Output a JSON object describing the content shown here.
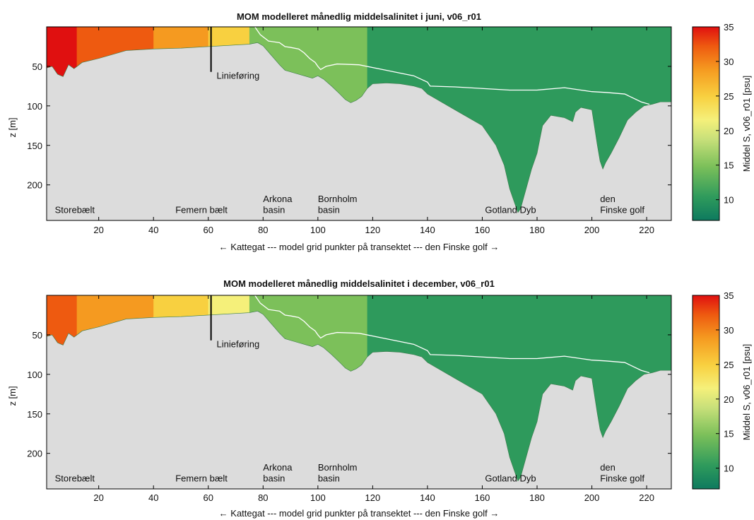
{
  "chart_data": [
    {
      "type": "heatmap",
      "title": "MOM modelleret månedlig middelsalinitet i juni, v06_r01",
      "xlabel": "← Kattegat --- model grid punkter på transektet --- den Finske golf →",
      "ylabel": "z [m]",
      "xlim": [
        1,
        229
      ],
      "ylim": [
        0,
        245
      ],
      "y_reversed": true,
      "xticks": [
        20,
        40,
        60,
        80,
        100,
        120,
        140,
        160,
        180,
        200,
        220
      ],
      "yticks": [
        50,
        100,
        150,
        200
      ],
      "colorbar": {
        "label": "Middel S, v06_r01 [psu]",
        "range": [
          7,
          35
        ],
        "ticks": [
          10,
          15,
          20,
          25,
          30,
          35
        ]
      },
      "annotations": [
        {
          "text": "Storebælt",
          "x": 4,
          "y": 232
        },
        {
          "text": "Femern bælt",
          "x": 48,
          "y": 232
        },
        {
          "text": "Arkona",
          "x": 80,
          "y": 218
        },
        {
          "text": "basin",
          "x": 80,
          "y": 232
        },
        {
          "text": "Bornholm",
          "x": 100,
          "y": 218
        },
        {
          "text": "basin",
          "x": 100,
          "y": 232
        },
        {
          "text": "Gotland Dyb",
          "x": 161,
          "y": 232
        },
        {
          "text": "den",
          "x": 203,
          "y": 218
        },
        {
          "text": "Finske golf",
          "x": 203,
          "y": 232
        },
        {
          "text": "Linieføring",
          "x": 62,
          "y": 62
        }
      ],
      "marker_line": {
        "x": 61,
        "y": [
          0,
          57
        ]
      },
      "bathymetry": [
        [
          1,
          52
        ],
        [
          3,
          50
        ],
        [
          5,
          60
        ],
        [
          7,
          63
        ],
        [
          9,
          48
        ],
        [
          11,
          53
        ],
        [
          14,
          45
        ],
        [
          20,
          40
        ],
        [
          30,
          30
        ],
        [
          40,
          28
        ],
        [
          50,
          27
        ],
        [
          60,
          25
        ],
        [
          70,
          23
        ],
        [
          75,
          22
        ],
        [
          78,
          20
        ],
        [
          80,
          24
        ],
        [
          82,
          32
        ],
        [
          84,
          40
        ],
        [
          86,
          48
        ],
        [
          88,
          55
        ],
        [
          90,
          57
        ],
        [
          93,
          60
        ],
        [
          96,
          63
        ],
        [
          98,
          65
        ],
        [
          100,
          62
        ],
        [
          102,
          66
        ],
        [
          105,
          75
        ],
        [
          108,
          85
        ],
        [
          110,
          92
        ],
        [
          112,
          96
        ],
        [
          114,
          93
        ],
        [
          116,
          88
        ],
        [
          118,
          78
        ],
        [
          120,
          72
        ],
        [
          125,
          71
        ],
        [
          130,
          72
        ],
        [
          135,
          75
        ],
        [
          138,
          78
        ],
        [
          140,
          85
        ],
        [
          145,
          95
        ],
        [
          150,
          105
        ],
        [
          155,
          115
        ],
        [
          160,
          125
        ],
        [
          165,
          150
        ],
        [
          168,
          175
        ],
        [
          170,
          205
        ],
        [
          172,
          225
        ],
        [
          173,
          235
        ],
        [
          174,
          230
        ],
        [
          176,
          205
        ],
        [
          178,
          180
        ],
        [
          180,
          160
        ],
        [
          182,
          125
        ],
        [
          185,
          112
        ],
        [
          190,
          115
        ],
        [
          193,
          120
        ],
        [
          194,
          108
        ],
        [
          196,
          102
        ],
        [
          200,
          105
        ],
        [
          202,
          150
        ],
        [
          203,
          170
        ],
        [
          204,
          180
        ],
        [
          205,
          172
        ],
        [
          207,
          160
        ],
        [
          210,
          140
        ],
        [
          213,
          118
        ],
        [
          216,
          108
        ],
        [
          219,
          100
        ],
        [
          222,
          98
        ],
        [
          225,
          95
        ],
        [
          229,
          95
        ]
      ],
      "halocline": [
        [
          77,
          0
        ],
        [
          79,
          10
        ],
        [
          82,
          18
        ],
        [
          86,
          20
        ],
        [
          88,
          25
        ],
        [
          90,
          26
        ],
        [
          93,
          28
        ],
        [
          95,
          33
        ],
        [
          97,
          40
        ],
        [
          99,
          45
        ],
        [
          100,
          50
        ],
        [
          101,
          54
        ],
        [
          103,
          50
        ],
        [
          107,
          47
        ],
        [
          115,
          48
        ],
        [
          125,
          55
        ],
        [
          135,
          62
        ],
        [
          140,
          70
        ],
        [
          141,
          75
        ],
        [
          150,
          76
        ],
        [
          160,
          78
        ],
        [
          170,
          80
        ],
        [
          180,
          80
        ],
        [
          190,
          77
        ],
        [
          196,
          80
        ],
        [
          200,
          82
        ],
        [
          205,
          83
        ],
        [
          212,
          85
        ],
        [
          218,
          95
        ],
        [
          221,
          98
        ]
      ],
      "salinity_zones": [
        {
          "range": [
            1,
            12
          ],
          "value": 33
        },
        {
          "range": [
            12,
            40
          ],
          "value": 31
        },
        {
          "range": [
            40,
            60
          ],
          "value": 27
        },
        {
          "range": [
            60,
            75
          ],
          "value": 22
        },
        {
          "range": [
            75,
            100
          ],
          "value": 14
        },
        {
          "range": [
            100,
            118
          ],
          "value": 15
        },
        {
          "range": [
            118,
            229
          ],
          "value": 9
        }
      ]
    },
    {
      "type": "heatmap",
      "title": "MOM modelleret månedlig middelsalinitet i december, v06_r01",
      "xlabel": "← Kattegat --- model grid punkter på transektet --- den Finske golf →",
      "ylabel": "z [m]",
      "xlim": [
        1,
        229
      ],
      "ylim": [
        0,
        245
      ],
      "y_reversed": true,
      "xticks": [
        20,
        40,
        60,
        80,
        100,
        120,
        140,
        160,
        180,
        200,
        220
      ],
      "yticks": [
        50,
        100,
        150,
        200
      ],
      "colorbar": {
        "label": "Middel S, v06_r01 [psu]",
        "range": [
          7,
          35
        ],
        "ticks": [
          10,
          15,
          20,
          25,
          30,
          35
        ]
      },
      "annotations": [
        {
          "text": "Storebælt",
          "x": 4,
          "y": 232
        },
        {
          "text": "Femern bælt",
          "x": 48,
          "y": 232
        },
        {
          "text": "Arkona",
          "x": 80,
          "y": 218
        },
        {
          "text": "basin",
          "x": 80,
          "y": 232
        },
        {
          "text": "Bornholm",
          "x": 100,
          "y": 218
        },
        {
          "text": "basin",
          "x": 100,
          "y": 232
        },
        {
          "text": "Gotland Dyb",
          "x": 161,
          "y": 232
        },
        {
          "text": "den",
          "x": 203,
          "y": 218
        },
        {
          "text": "Finske golf",
          "x": 203,
          "y": 232
        },
        {
          "text": "Linieføring",
          "x": 62,
          "y": 62
        }
      ],
      "marker_line": {
        "x": 61,
        "y": [
          0,
          57
        ]
      },
      "bathymetry": [
        [
          1,
          52
        ],
        [
          3,
          50
        ],
        [
          5,
          60
        ],
        [
          7,
          63
        ],
        [
          9,
          48
        ],
        [
          11,
          53
        ],
        [
          14,
          45
        ],
        [
          20,
          40
        ],
        [
          30,
          30
        ],
        [
          40,
          28
        ],
        [
          50,
          27
        ],
        [
          60,
          25
        ],
        [
          70,
          23
        ],
        [
          75,
          22
        ],
        [
          78,
          20
        ],
        [
          80,
          24
        ],
        [
          82,
          32
        ],
        [
          84,
          40
        ],
        [
          86,
          48
        ],
        [
          88,
          55
        ],
        [
          90,
          57
        ],
        [
          93,
          60
        ],
        [
          96,
          63
        ],
        [
          98,
          65
        ],
        [
          100,
          62
        ],
        [
          102,
          66
        ],
        [
          105,
          75
        ],
        [
          108,
          85
        ],
        [
          110,
          92
        ],
        [
          112,
          96
        ],
        [
          114,
          93
        ],
        [
          116,
          88
        ],
        [
          118,
          78
        ],
        [
          120,
          72
        ],
        [
          125,
          71
        ],
        [
          130,
          72
        ],
        [
          135,
          75
        ],
        [
          138,
          78
        ],
        [
          140,
          85
        ],
        [
          145,
          95
        ],
        [
          150,
          105
        ],
        [
          155,
          115
        ],
        [
          160,
          125
        ],
        [
          165,
          150
        ],
        [
          168,
          175
        ],
        [
          170,
          205
        ],
        [
          172,
          225
        ],
        [
          173,
          235
        ],
        [
          174,
          230
        ],
        [
          176,
          205
        ],
        [
          178,
          180
        ],
        [
          180,
          160
        ],
        [
          182,
          125
        ],
        [
          185,
          112
        ],
        [
          190,
          115
        ],
        [
          193,
          120
        ],
        [
          194,
          108
        ],
        [
          196,
          102
        ],
        [
          200,
          105
        ],
        [
          202,
          150
        ],
        [
          203,
          170
        ],
        [
          204,
          180
        ],
        [
          205,
          172
        ],
        [
          207,
          160
        ],
        [
          210,
          140
        ],
        [
          213,
          118
        ],
        [
          216,
          108
        ],
        [
          219,
          100
        ],
        [
          222,
          98
        ],
        [
          225,
          95
        ],
        [
          229,
          95
        ]
      ],
      "halocline": [
        [
          77,
          0
        ],
        [
          79,
          10
        ],
        [
          82,
          18
        ],
        [
          86,
          20
        ],
        [
          88,
          25
        ],
        [
          90,
          26
        ],
        [
          93,
          28
        ],
        [
          95,
          33
        ],
        [
          97,
          40
        ],
        [
          99,
          45
        ],
        [
          100,
          50
        ],
        [
          101,
          54
        ],
        [
          103,
          50
        ],
        [
          107,
          47
        ],
        [
          115,
          48
        ],
        [
          125,
          55
        ],
        [
          135,
          62
        ],
        [
          140,
          70
        ],
        [
          141,
          75
        ],
        [
          150,
          76
        ],
        [
          160,
          78
        ],
        [
          170,
          80
        ],
        [
          180,
          80
        ],
        [
          190,
          77
        ],
        [
          196,
          80
        ],
        [
          200,
          82
        ],
        [
          205,
          83
        ],
        [
          212,
          85
        ],
        [
          218,
          95
        ],
        [
          221,
          98
        ]
      ],
      "salinity_zones": [
        {
          "range": [
            1,
            12
          ],
          "value": 32
        },
        {
          "range": [
            12,
            40
          ],
          "value": 29
        },
        {
          "range": [
            40,
            60
          ],
          "value": 24
        },
        {
          "range": [
            60,
            75
          ],
          "value": 20
        },
        {
          "range": [
            75,
            100
          ],
          "value": 13
        },
        {
          "range": [
            100,
            118
          ],
          "value": 14
        },
        {
          "range": [
            118,
            229
          ],
          "value": 8
        }
      ]
    }
  ]
}
